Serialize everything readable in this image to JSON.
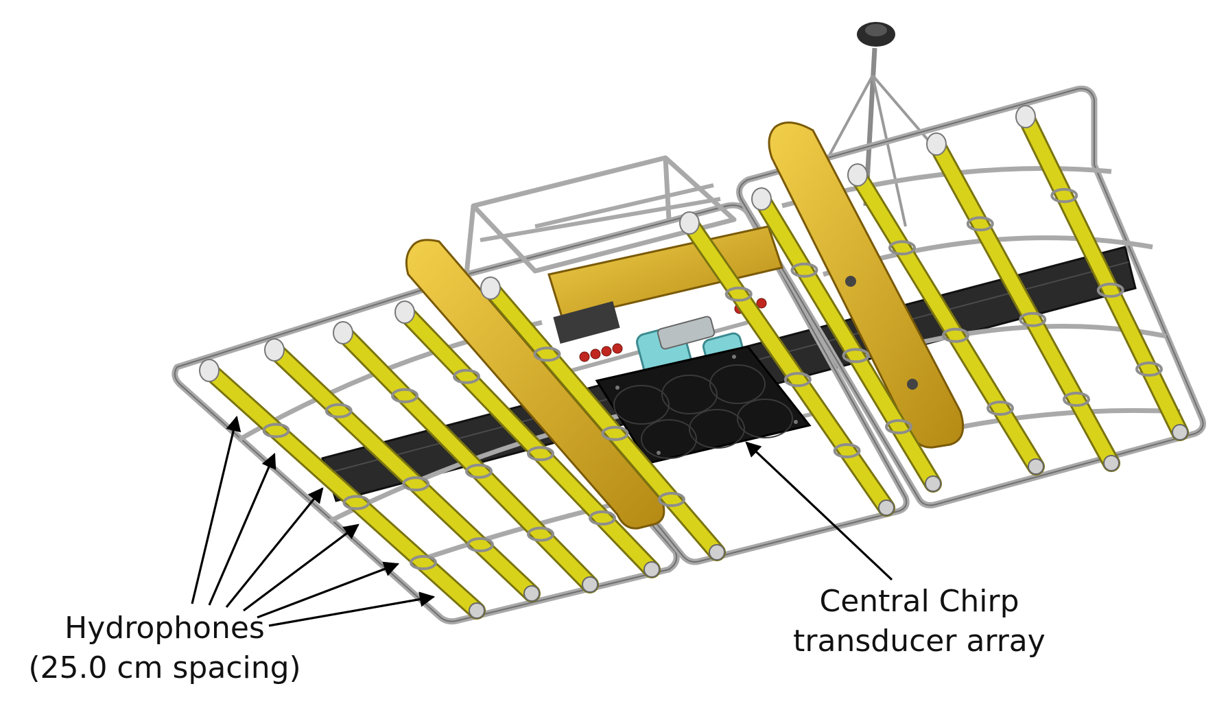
{
  "labels": {
    "hydrophones_line1": "Hydrophones",
    "hydrophones_line2": "(25.0 cm spacing)",
    "transducer_line1": "Central Chirp",
    "transducer_line2": "transducer array"
  },
  "colors": {
    "frame": "#a9a9a9",
    "frame_dark": "#6f6f6f",
    "hydrophone": "#d9d21a",
    "hydrophone_dark": "#7a7410",
    "float": "#e0b52c",
    "float_dark": "#9a7a12",
    "transducer": "#151515",
    "cyan_parts": "#7fd3d7",
    "beam": "#2a2a2a",
    "connectors": "#c0271f",
    "arrows": "#000000"
  }
}
